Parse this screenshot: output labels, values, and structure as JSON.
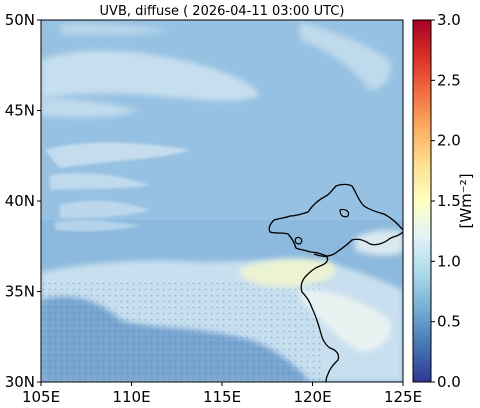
{
  "title": "UVB, diffuse ( 2026-04-11 03:00 UTC)",
  "map": {
    "lon_ticks": [
      "105E",
      "110E",
      "115E",
      "120E",
      "125E"
    ],
    "lat_ticks": [
      "30N",
      "35N",
      "40N",
      "45N",
      "50N"
    ],
    "lon_range": [
      105,
      125
    ],
    "lat_range": [
      30,
      50
    ]
  },
  "colorbar": {
    "label": "[Wm⁻²]",
    "ticks": [
      "0.0",
      "0.5",
      "1.0",
      "1.5",
      "2.0",
      "2.5",
      "3.0"
    ],
    "range": [
      0,
      3
    ],
    "colormap": "RdYlBu_r",
    "colors": [
      "#313695",
      "#4575b4",
      "#74add1",
      "#abd9e9",
      "#e0f3f8",
      "#ffffbf",
      "#fee090",
      "#fdae61",
      "#f46d43",
      "#d73027",
      "#a50026"
    ]
  },
  "field_colors": {
    "background": "#8db9de",
    "clear_north": "#9fc6e4",
    "cloud": "#cfe4f1",
    "bright_cloud": "#eef6f2",
    "yellow_haze": "#f3f7cf",
    "dark_south": "#5c8fc6",
    "coastline": "#000000"
  }
}
